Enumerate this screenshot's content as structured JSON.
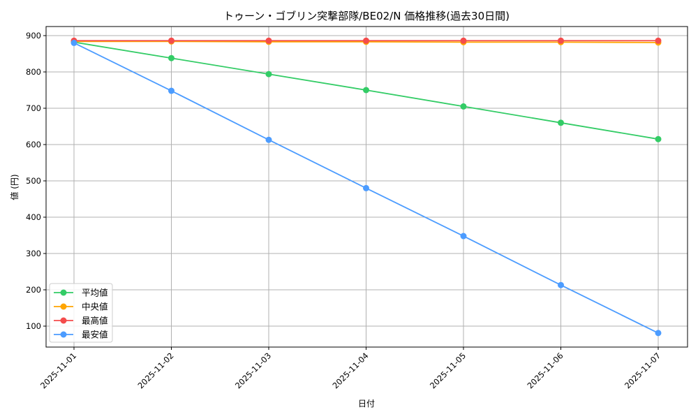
{
  "chart_data": {
    "type": "line",
    "title": "トゥーン・ゴブリン突撃部隊/BE02/N 価格推移(過去30日間)",
    "xlabel": "日付",
    "ylabel": "値 (円)",
    "categories": [
      "2025-11-01",
      "2025-11-02",
      "2025-11-03",
      "2025-11-04",
      "2025-11-05",
      "2025-11-06",
      "2025-11-07"
    ],
    "ylim": [
      40,
      925
    ],
    "yticks": [
      100,
      200,
      300,
      400,
      500,
      600,
      700,
      800,
      900
    ],
    "grid": true,
    "legend_position": "lower left",
    "series": [
      {
        "name": "平均値",
        "color": "#33cc66",
        "values": [
          882,
          838,
          794,
          750,
          705,
          660,
          615
        ]
      },
      {
        "name": "中央値",
        "color": "#ffa500",
        "values": [
          884,
          884,
          883,
          883,
          882,
          882,
          881
        ]
      },
      {
        "name": "最高値",
        "color": "#f44c4c",
        "values": [
          886,
          886,
          886,
          886,
          886,
          886,
          886
        ]
      },
      {
        "name": "最安値",
        "color": "#4c9cff",
        "values": [
          880,
          748,
          613,
          480,
          348,
          213,
          81
        ]
      }
    ]
  }
}
